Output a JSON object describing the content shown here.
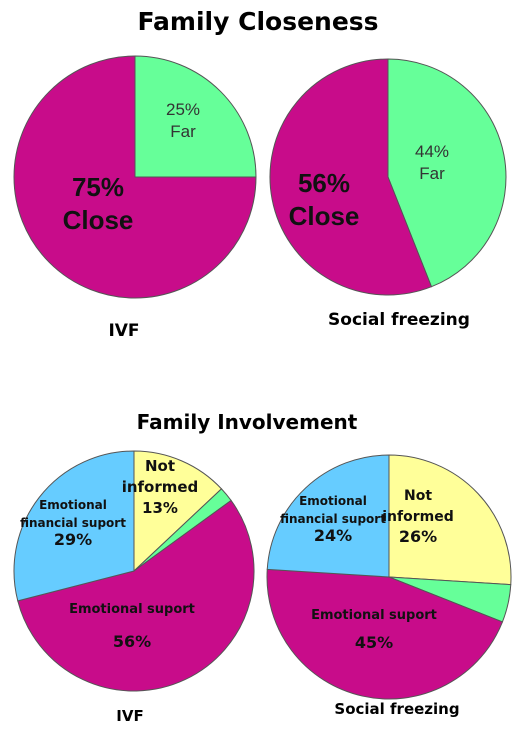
{
  "sections": {
    "closeness_title": "Family Closeness",
    "involvement_title": "Family Involvement"
  },
  "colors": {
    "magenta": "#C80C8A",
    "green": "#66FF99",
    "blue": "#66CCFF",
    "yellow": "#FFFF99",
    "outline": "#555555"
  },
  "chart_data": [
    {
      "type": "pie",
      "title": "Family Closeness",
      "caption": "IVF",
      "slices": [
        {
          "key": "far",
          "value": 25,
          "color": "#66FF99",
          "label_lines": [
            "25%",
            "Far"
          ]
        },
        {
          "key": "close",
          "value": 75,
          "color": "#C80C8A",
          "label_lines": [
            "75%",
            "Close"
          ]
        }
      ]
    },
    {
      "type": "pie",
      "title": "Family Closeness",
      "caption": "Social freezing",
      "slices": [
        {
          "key": "far",
          "value": 44,
          "color": "#66FF99",
          "label_lines": [
            "44%",
            "Far"
          ]
        },
        {
          "key": "close",
          "value": 56,
          "color": "#C80C8A",
          "label_lines": [
            "56%",
            "Close"
          ]
        }
      ]
    },
    {
      "type": "pie",
      "title": "Family Involvement",
      "caption": "IVF",
      "slices": [
        {
          "key": "not_informed",
          "value": 13,
          "color": "#FFFF99",
          "label_lines": [
            "Not",
            "informed",
            "13%"
          ]
        },
        {
          "key": "other",
          "value": 2,
          "color": "#66FF99",
          "label_lines": []
        },
        {
          "key": "emotional",
          "value": 56,
          "color": "#C80C8A",
          "label_lines": [
            "Emotional suport",
            "56%"
          ]
        },
        {
          "key": "emotional_financial",
          "value": 29,
          "color": "#66CCFF",
          "label_lines": [
            "Emotional",
            "financial suport",
            "29%"
          ]
        }
      ]
    },
    {
      "type": "pie",
      "title": "Family Involvement",
      "caption": "Social freezing",
      "slices": [
        {
          "key": "not_informed",
          "value": 26,
          "color": "#FFFF99",
          "label_lines": [
            "Not",
            "informed",
            "26%"
          ]
        },
        {
          "key": "other",
          "value": 5,
          "color": "#66FF99",
          "label_lines": []
        },
        {
          "key": "emotional",
          "value": 45,
          "color": "#C80C8A",
          "label_lines": [
            "Emotional suport",
            "45%"
          ]
        },
        {
          "key": "emotional_financial",
          "value": 24,
          "color": "#66CCFF",
          "label_lines": [
            "Emotional",
            "financial suport",
            "24%"
          ]
        }
      ]
    }
  ]
}
